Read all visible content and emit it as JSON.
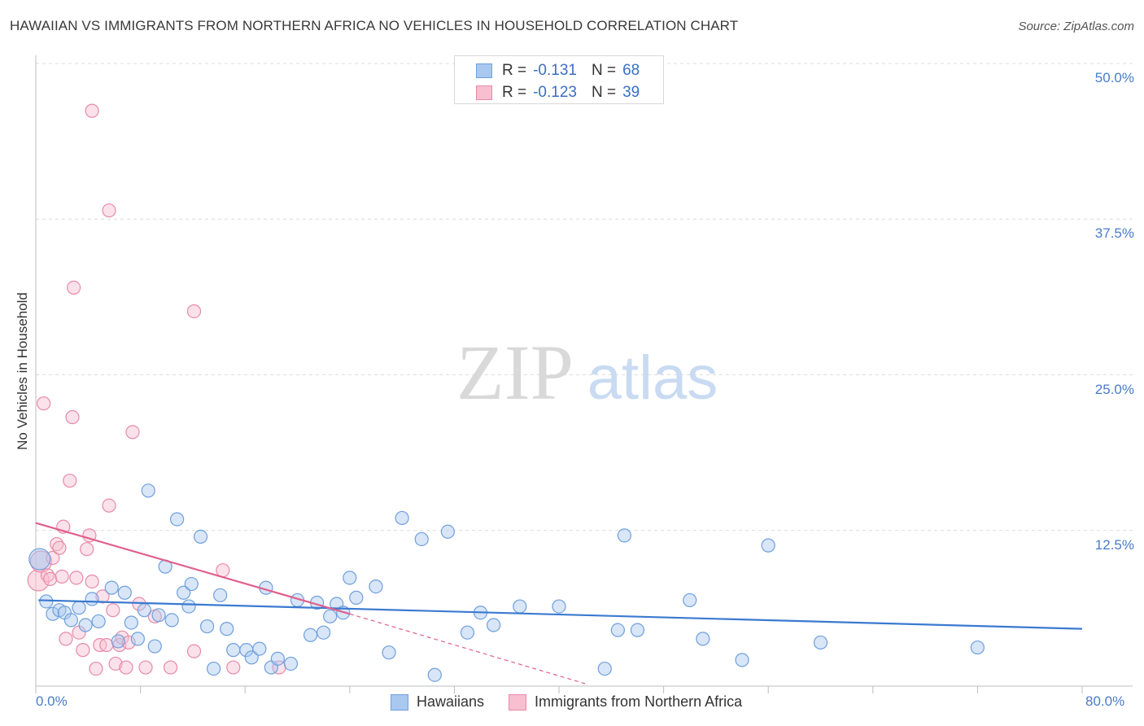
{
  "chart_data": {
    "type": "scatter",
    "title": "HAWAIIAN VS IMMIGRANTS FROM NORTHERN AFRICA NO VEHICLES IN HOUSEHOLD CORRELATION CHART",
    "source": "Source: ZipAtlas.com",
    "ylabel": "No Vehicles in Household",
    "xlim": [
      0,
      80
    ],
    "ylim": [
      0,
      50
    ],
    "x_tick_labels": [
      "0.0%",
      "80.0%"
    ],
    "y_ticks": [
      {
        "value": 50,
        "label": "50.0%"
      },
      {
        "value": 37.5,
        "label": "37.5%"
      },
      {
        "value": 25,
        "label": "25.0%"
      },
      {
        "value": 12.5,
        "label": "12.5%"
      }
    ],
    "watermark": {
      "part1": "ZIP",
      "part2": "atlas"
    },
    "series": [
      {
        "name": "Hawaiians",
        "r_label": "R =",
        "r_value": "-0.131",
        "n_label": "N =",
        "n_value": "68",
        "fill": "#a9c8f0",
        "stroke": "#6f9fdc",
        "line_color": "#3a7ad0",
        "trend": {
          "x1": 0.2,
          "y1": 6.9,
          "x2": 80,
          "y2": 4.6
        },
        "points": [
          [
            0.3,
            10.2
          ],
          [
            0.8,
            6.8
          ],
          [
            1.3,
            5.8
          ],
          [
            1.8,
            6.1
          ],
          [
            2.2,
            5.9
          ],
          [
            2.7,
            5.3
          ],
          [
            3.3,
            6.3
          ],
          [
            3.8,
            4.9
          ],
          [
            4.3,
            7.0
          ],
          [
            4.8,
            5.2
          ],
          [
            5.8,
            7.9
          ],
          [
            6.3,
            3.6
          ],
          [
            6.8,
            7.5
          ],
          [
            7.3,
            5.1
          ],
          [
            7.8,
            3.8
          ],
          [
            8.3,
            6.1
          ],
          [
            8.6,
            15.7
          ],
          [
            9.1,
            3.2
          ],
          [
            9.4,
            5.7
          ],
          [
            9.9,
            9.6
          ],
          [
            10.4,
            5.3
          ],
          [
            10.8,
            13.4
          ],
          [
            11.3,
            7.5
          ],
          [
            11.7,
            6.4
          ],
          [
            11.9,
            8.2
          ],
          [
            12.6,
            12.0
          ],
          [
            13.1,
            4.8
          ],
          [
            13.6,
            1.4
          ],
          [
            14.1,
            7.3
          ],
          [
            14.6,
            4.6
          ],
          [
            15.1,
            2.9
          ],
          [
            16.1,
            2.9
          ],
          [
            16.5,
            2.3
          ],
          [
            17.1,
            3.0
          ],
          [
            17.6,
            7.9
          ],
          [
            18.0,
            1.5
          ],
          [
            18.5,
            2.2
          ],
          [
            19.5,
            1.8
          ],
          [
            20.0,
            6.9
          ],
          [
            21.0,
            4.1
          ],
          [
            21.5,
            6.7
          ],
          [
            22.0,
            4.3
          ],
          [
            22.5,
            5.6
          ],
          [
            23.0,
            6.6
          ],
          [
            23.5,
            5.9
          ],
          [
            24.0,
            8.7
          ],
          [
            24.5,
            7.1
          ],
          [
            26.0,
            8.0
          ],
          [
            27.0,
            2.7
          ],
          [
            28.0,
            13.5
          ],
          [
            29.5,
            11.8
          ],
          [
            30.5,
            0.9
          ],
          [
            31.5,
            12.4
          ],
          [
            33.0,
            4.3
          ],
          [
            34.0,
            5.9
          ],
          [
            35.0,
            4.9
          ],
          [
            37.0,
            6.4
          ],
          [
            40.0,
            6.4
          ],
          [
            43.5,
            1.4
          ],
          [
            44.5,
            4.5
          ],
          [
            45.0,
            12.1
          ],
          [
            46.0,
            4.5
          ],
          [
            50.0,
            6.9
          ],
          [
            51.0,
            3.8
          ],
          [
            54.0,
            2.1
          ],
          [
            56.0,
            11.3
          ],
          [
            60.0,
            3.5
          ],
          [
            72.0,
            3.1
          ]
        ]
      },
      {
        "name": "Immigrants from Northern Africa",
        "r_label": "R =",
        "r_value": "-0.123",
        "n_label": "N =",
        "n_value": "39",
        "fill": "#f7bfd0",
        "stroke": "#e88aa8",
        "line_color": "#e0608c",
        "trend": {
          "x1": 0,
          "y1": 13.1,
          "x2": 24,
          "y2": 5.8
        },
        "trend_extension": {
          "x1": 24,
          "y1": 5.8,
          "x2": 42,
          "y2": 0.2
        },
        "points": [
          [
            0.2,
            8.5
          ],
          [
            0.4,
            10.0
          ],
          [
            0.6,
            22.7
          ],
          [
            0.9,
            8.9
          ],
          [
            1.1,
            8.6
          ],
          [
            1.3,
            10.3
          ],
          [
            1.6,
            11.4
          ],
          [
            1.8,
            11.1
          ],
          [
            2.0,
            8.8
          ],
          [
            2.1,
            12.8
          ],
          [
            2.3,
            3.8
          ],
          [
            2.6,
            16.5
          ],
          [
            2.8,
            21.6
          ],
          [
            3.1,
            8.7
          ],
          [
            3.3,
            4.3
          ],
          [
            3.6,
            2.9
          ],
          [
            3.9,
            11.0
          ],
          [
            4.1,
            12.1
          ],
          [
            4.3,
            8.4
          ],
          [
            4.6,
            1.4
          ],
          [
            4.9,
            3.3
          ],
          [
            5.1,
            7.2
          ],
          [
            5.4,
            3.3
          ],
          [
            5.6,
            14.5
          ],
          [
            5.9,
            6.1
          ],
          [
            6.1,
            1.8
          ],
          [
            6.4,
            3.3
          ],
          [
            6.6,
            3.9
          ],
          [
            6.9,
            1.5
          ],
          [
            7.1,
            3.5
          ],
          [
            7.4,
            20.4
          ],
          [
            7.9,
            6.6
          ],
          [
            8.4,
            1.5
          ],
          [
            9.1,
            5.6
          ],
          [
            10.3,
            1.5
          ],
          [
            12.1,
            2.8
          ],
          [
            14.3,
            9.3
          ],
          [
            15.1,
            1.5
          ],
          [
            18.6,
            1.5
          ]
        ]
      }
    ],
    "special_points": [
      {
        "series": "Immigrants from Northern Africa",
        "x": 4.3,
        "y": 46.2
      },
      {
        "series": "Immigrants from Northern Africa",
        "x": 5.6,
        "y": 38.2
      },
      {
        "series": "Immigrants from Northern Africa",
        "x": 2.9,
        "y": 32.0
      },
      {
        "series": "Immigrants from Northern Africa",
        "x": 12.1,
        "y": 30.1
      }
    ]
  }
}
